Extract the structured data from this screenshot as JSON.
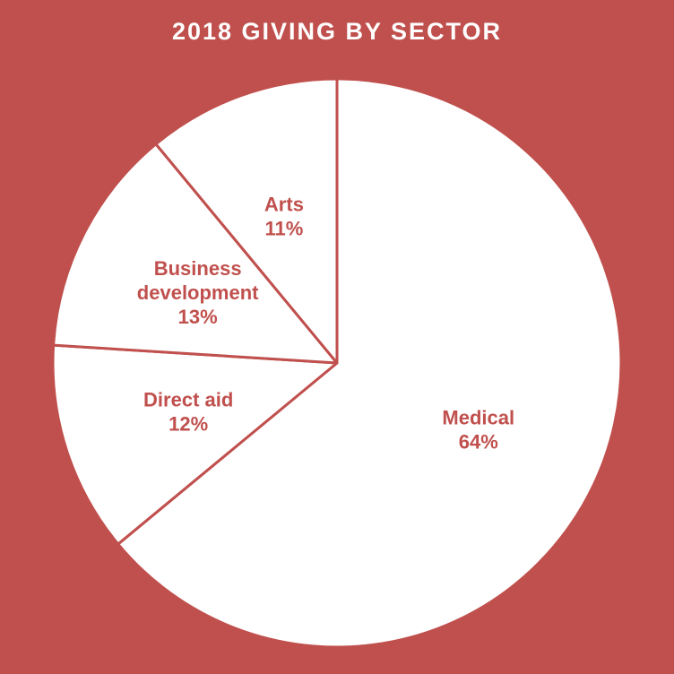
{
  "chart_data": {
    "type": "pie",
    "title": "2018 GIVING BY SECTOR",
    "slices": [
      {
        "label": [
          "Medical"
        ],
        "value": 64,
        "value_text": "64%"
      },
      {
        "label": [
          "Direct aid"
        ],
        "value": 12,
        "value_text": "12%"
      },
      {
        "label": [
          "Business",
          "development"
        ],
        "value": 13,
        "value_text": "13%"
      },
      {
        "label": [
          "Arts"
        ],
        "value": 11,
        "value_text": "11%"
      }
    ],
    "start_angle_deg": 0,
    "direction": "clockwise",
    "legend": "none"
  },
  "colors": {
    "background": "#c0504d",
    "slice_fill": "#ffffff",
    "slice_border": "#c0504d",
    "label_text": "#c0504d",
    "title_text": "#ffffff"
  }
}
